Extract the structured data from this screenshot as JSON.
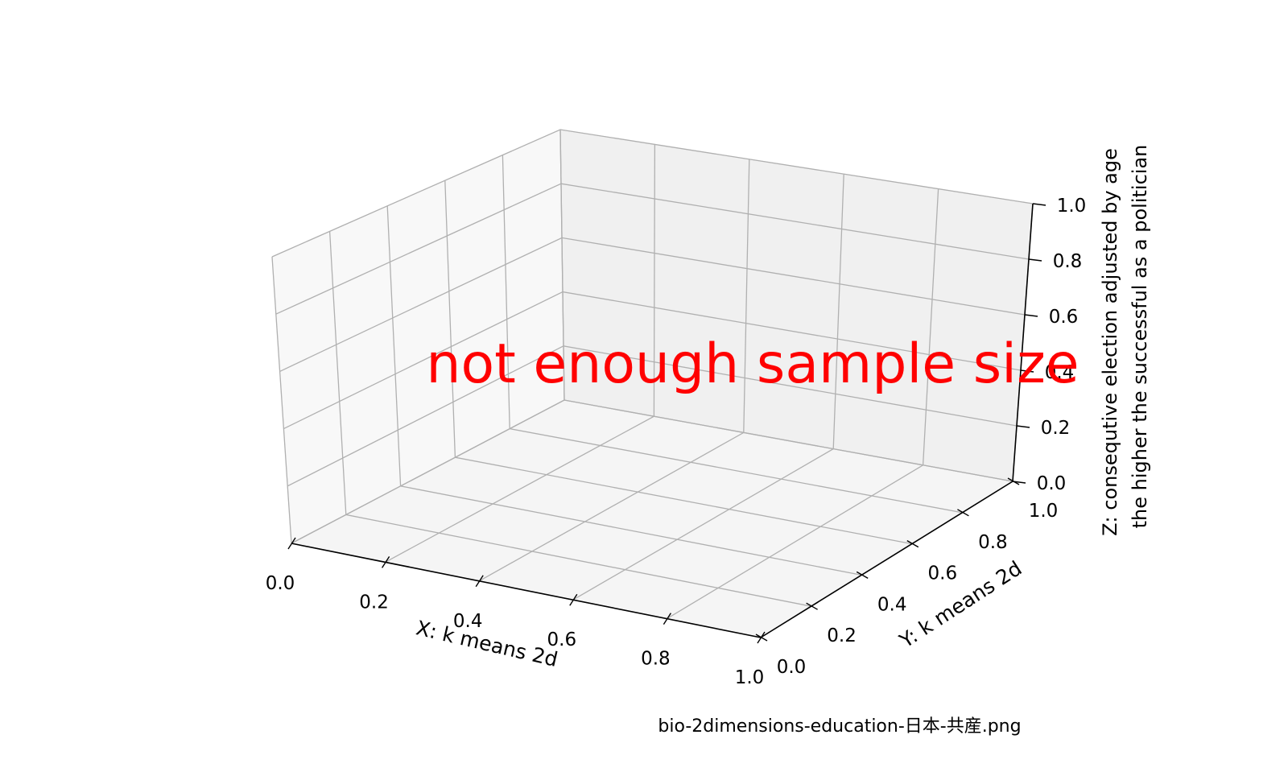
{
  "chart_data": {
    "type": "scatter",
    "projection": "3d",
    "series": [],
    "x": [],
    "y": [],
    "z": [],
    "xlabel": "X: k means 2d",
    "ylabel": "Y: k means 2d",
    "zlabel_lines": [
      "Z: consequtive election adjusted by age",
      "the higher the successful as a politician"
    ],
    "xlim": [
      0,
      1
    ],
    "ylim": [
      0,
      1
    ],
    "zlim": [
      0,
      1
    ],
    "xticks": [
      "0.0",
      "0.2",
      "0.4",
      "0.6",
      "0.8",
      "1.0"
    ],
    "yticks": [
      "0.0",
      "0.2",
      "0.4",
      "0.6",
      "0.8",
      "1.0"
    ],
    "zticks": [
      "0.0",
      "0.2",
      "0.4",
      "0.6",
      "0.8",
      "1.0"
    ],
    "grid": true,
    "annotation": "not enough sample size",
    "annotation_color": "#ff0000"
  },
  "footer": {
    "filename": "bio-2dimensions-education-日本-共産.png"
  }
}
